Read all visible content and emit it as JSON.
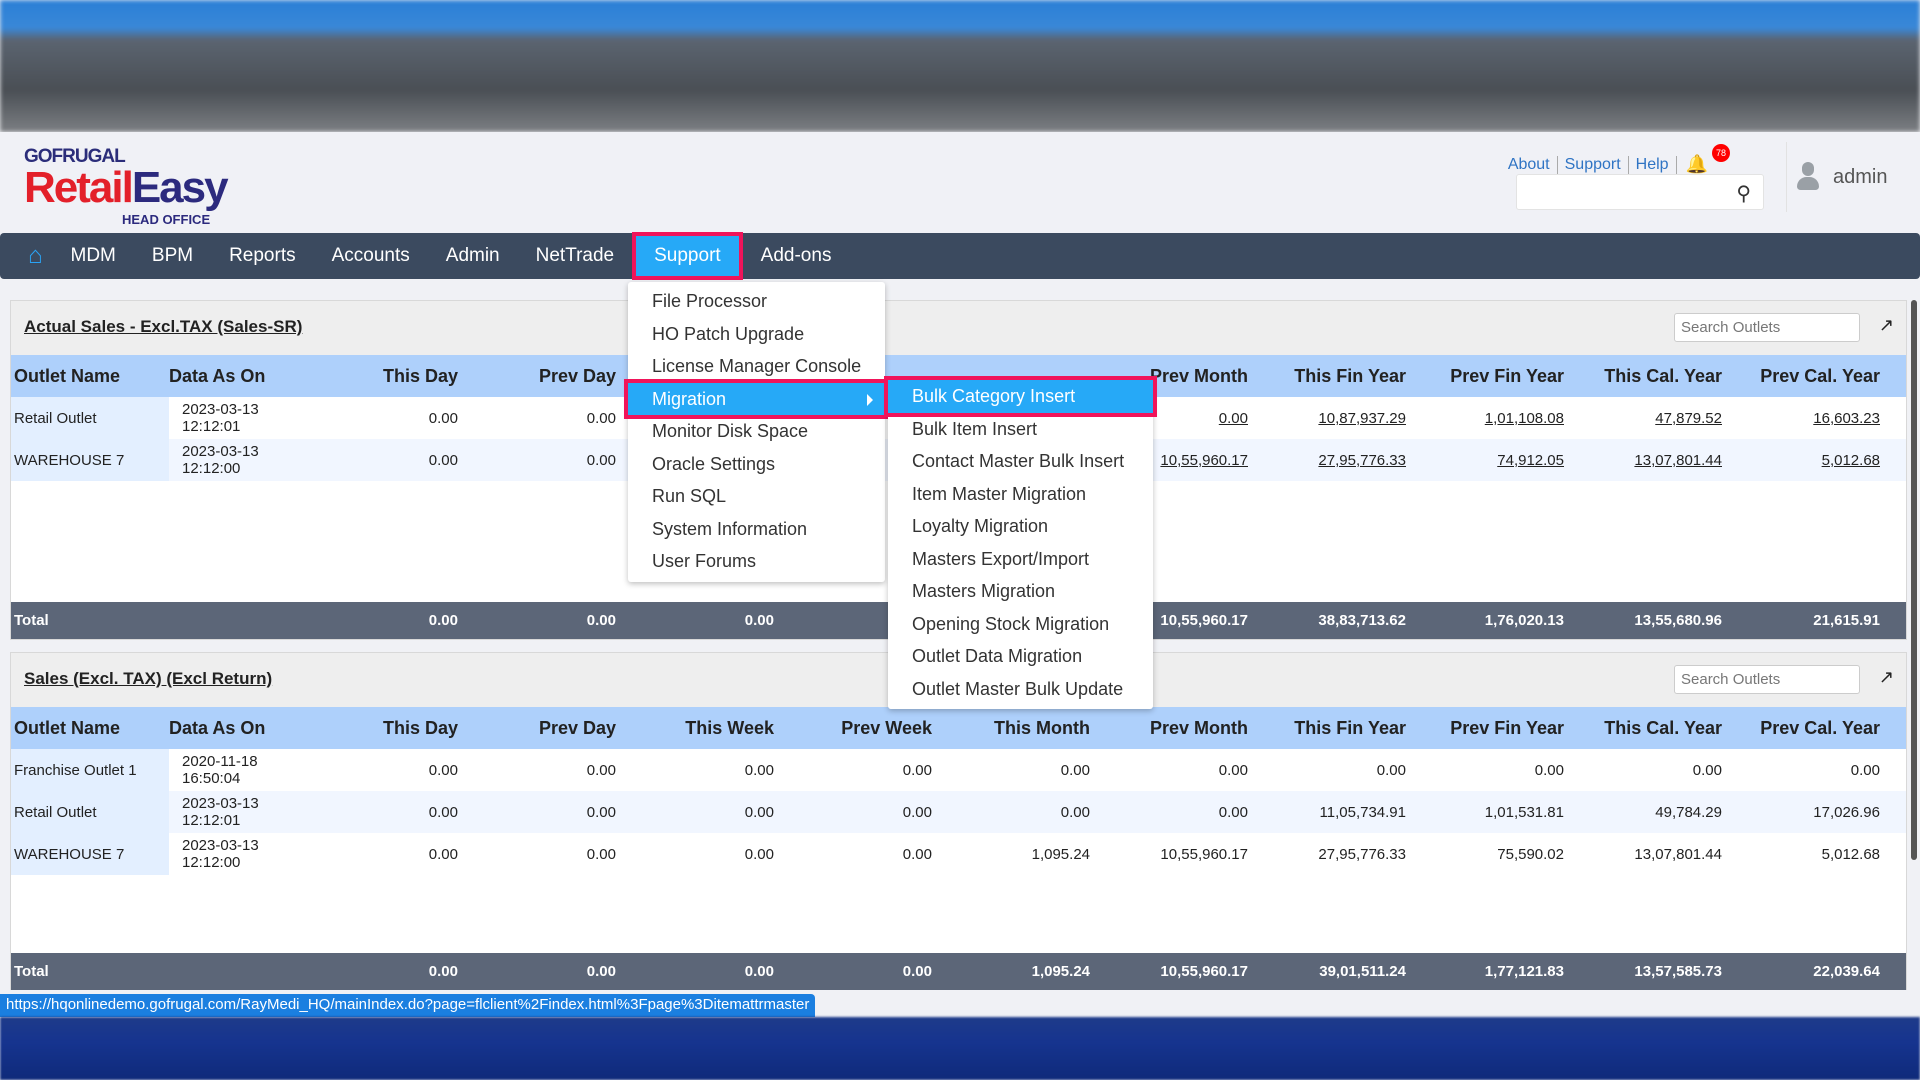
{
  "brand": {
    "top": "GOFRUGAL",
    "name_a": "Retail",
    "name_b": "Easy",
    "sub": "HEAD OFFICE"
  },
  "toplinks": {
    "about": "About",
    "support": "Support",
    "help": "Help",
    "notifications": "78"
  },
  "user": {
    "name": "admin"
  },
  "nav": {
    "items": [
      "MDM",
      "BPM",
      "Reports",
      "Accounts",
      "Admin",
      "NetTrade",
      "Support",
      "Add-ons"
    ],
    "selected": "Support"
  },
  "support_menu": [
    "File Processor",
    "HO Patch Upgrade",
    "License Manager Console",
    "Migration",
    "Monitor Disk Space",
    "Oracle Settings",
    "Run SQL",
    "System Information",
    "User Forums"
  ],
  "migration_menu": [
    "Bulk Category Insert",
    "Bulk Item Insert",
    "Contact Master Bulk Insert",
    "Item Master Migration",
    "Loyalty Migration",
    "Masters Export/Import",
    "Masters Migration",
    "Opening Stock Migration",
    "Outlet Data Migration",
    "Outlet Master Bulk Update"
  ],
  "columns": [
    "Outlet Name",
    "Data As On",
    "This Day",
    "Prev Day",
    "This Week",
    "Prev Week",
    "This Month",
    "Prev Month",
    "This Fin Year",
    "Prev Fin Year",
    "This Cal. Year",
    "Prev Cal. Year"
  ],
  "panels": [
    {
      "title": "Actual Sales - Excl.TAX (Sales-SR)",
      "search_placeholder": "Search Outlets",
      "rows": [
        [
          "Retail Outlet",
          "2023-03-13 12:12:01",
          "0.00",
          "0.00",
          "",
          "",
          "",
          "0.00",
          "10,87,937.29",
          "1,01,108.08",
          "47,879.52",
          "16,603.23"
        ],
        [
          "WAREHOUSE 7",
          "2023-03-13 12:12:00",
          "0.00",
          "0.00",
          "",
          "",
          "",
          "10,55,960.17",
          "27,95,776.33",
          "74,912.05",
          "13,07,801.44",
          "5,012.68"
        ]
      ],
      "linked_from": 7,
      "total": [
        "Total",
        "",
        "0.00",
        "0.00",
        "0.00",
        "",
        "",
        "10,55,960.17",
        "38,83,713.62",
        "1,76,020.13",
        "13,55,680.96",
        "21,615.91"
      ]
    },
    {
      "title": "Sales (Excl. TAX) (Excl Return)",
      "search_placeholder": "Search Outlets",
      "rows": [
        [
          "Franchise Outlet 1",
          "2020-11-18 16:50:04",
          "0.00",
          "0.00",
          "0.00",
          "0.00",
          "0.00",
          "0.00",
          "0.00",
          "0.00",
          "0.00",
          "0.00"
        ],
        [
          "Retail Outlet",
          "2023-03-13 12:12:01",
          "0.00",
          "0.00",
          "0.00",
          "0.00",
          "0.00",
          "0.00",
          "11,05,734.91",
          "1,01,531.81",
          "49,784.29",
          "17,026.96"
        ],
        [
          "WAREHOUSE 7",
          "2023-03-13 12:12:00",
          "0.00",
          "0.00",
          "0.00",
          "0.00",
          "1,095.24",
          "10,55,960.17",
          "27,95,776.33",
          "75,590.02",
          "13,07,801.44",
          "5,012.68"
        ]
      ],
      "linked_from": 99,
      "total": [
        "Total",
        "",
        "0.00",
        "0.00",
        "0.00",
        "0.00",
        "1,095.24",
        "10,55,960.17",
        "39,01,511.24",
        "1,77,121.83",
        "13,57,585.73",
        "22,039.64"
      ]
    }
  ],
  "status_url": "https://hqonlinedemo.gofrugal.com/RayMedi_HQ/mainIndex.do?page=flclient%2Findex.html%3Fpage%3Ditemattrmaster",
  "colors": {
    "nav": "#3b4a5f",
    "accent": "#26a9f7",
    "highlight_border": "#f0145a",
    "table_header": "#aed0fb",
    "total_row": "#5c6678"
  }
}
